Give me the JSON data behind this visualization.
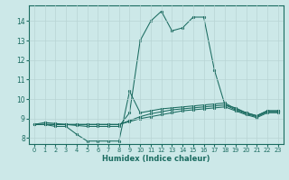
{
  "xlabel": "Humidex (Indice chaleur)",
  "xlim": [
    -0.5,
    23.5
  ],
  "ylim": [
    7.7,
    14.8
  ],
  "xticks": [
    0,
    1,
    2,
    3,
    4,
    5,
    6,
    7,
    8,
    9,
    10,
    11,
    12,
    13,
    14,
    15,
    16,
    17,
    18,
    19,
    20,
    21,
    22,
    23
  ],
  "yticks": [
    8,
    9,
    10,
    11,
    12,
    13,
    14
  ],
  "bg_color": "#cce8e8",
  "line_color": "#1a6b60",
  "grid_color": "#b8d4d4",
  "curves": [
    {
      "x": [
        0,
        1,
        2,
        3,
        4,
        5,
        6,
        7,
        8,
        9,
        10,
        11,
        12,
        13,
        14,
        15,
        16,
        17,
        18,
        19,
        20,
        21,
        22,
        23
      ],
      "y": [
        8.7,
        8.8,
        8.75,
        8.7,
        8.65,
        8.6,
        8.6,
        8.6,
        8.6,
        9.3,
        13.0,
        14.0,
        14.5,
        13.5,
        13.65,
        14.2,
        14.2,
        11.5,
        9.7,
        9.55,
        9.3,
        9.15,
        9.4,
        9.4
      ]
    },
    {
      "x": [
        0,
        1,
        2,
        3,
        4,
        5,
        6,
        7,
        8,
        9,
        10,
        11,
        12,
        13,
        14,
        15,
        16,
        17,
        18,
        19,
        20,
        21,
        22,
        23
      ],
      "y": [
        8.7,
        8.7,
        8.6,
        8.6,
        8.2,
        7.85,
        7.85,
        7.85,
        7.85,
        10.4,
        9.3,
        9.4,
        9.5,
        9.55,
        9.6,
        9.65,
        9.7,
        9.75,
        9.8,
        9.5,
        9.3,
        9.15,
        9.4,
        9.4
      ]
    },
    {
      "x": [
        0,
        1,
        2,
        3,
        4,
        5,
        6,
        7,
        8,
        9,
        10,
        11,
        12,
        13,
        14,
        15,
        16,
        17,
        18,
        19,
        20,
        21,
        22,
        23
      ],
      "y": [
        8.7,
        8.7,
        8.7,
        8.7,
        8.7,
        8.7,
        8.7,
        8.7,
        8.7,
        8.9,
        9.1,
        9.25,
        9.35,
        9.45,
        9.5,
        9.55,
        9.6,
        9.65,
        9.7,
        9.45,
        9.25,
        9.1,
        9.35,
        9.35
      ]
    },
    {
      "x": [
        0,
        1,
        2,
        3,
        4,
        5,
        6,
        7,
        8,
        9,
        10,
        11,
        12,
        13,
        14,
        15,
        16,
        17,
        18,
        19,
        20,
        21,
        22,
        23
      ],
      "y": [
        8.7,
        8.7,
        8.7,
        8.7,
        8.7,
        8.7,
        8.7,
        8.7,
        8.7,
        8.85,
        9.0,
        9.1,
        9.2,
        9.3,
        9.4,
        9.45,
        9.5,
        9.55,
        9.6,
        9.4,
        9.2,
        9.05,
        9.3,
        9.3
      ]
    }
  ]
}
